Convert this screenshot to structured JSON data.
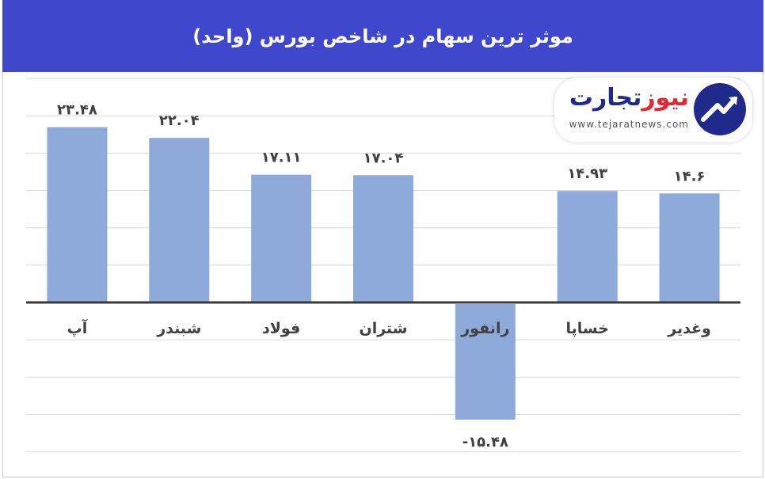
{
  "header": {
    "title": "موثر ترین سهام در شاخص بورس (واحد)"
  },
  "logo": {
    "name_part1": "تجارت",
    "name_part2": "نیوز",
    "url": "www.tejaratnews.com"
  },
  "colors": {
    "header_bg": "#3f48cc",
    "bar": "#8eaadb",
    "axis": "#3a3a3a",
    "grid": "#d9d9d9"
  },
  "chart_data": {
    "type": "bar",
    "categories": [
      "آپ",
      "شبندر",
      "فولاد",
      "شتران",
      "رانفور",
      "خساپا",
      "وغدیر"
    ],
    "values": [
      23.48,
      22.04,
      17.11,
      17.04,
      -15.48,
      14.93,
      14.6
    ],
    "value_labels": [
      "۲۳.۴۸",
      "۲۲.۰۴",
      "۱۷.۱۱",
      "۱۷.۰۴",
      "-۱۵.۴۸",
      "۱۴.۹۳",
      "۱۴.۶"
    ],
    "title": "موثر ترین سهام در شاخص بورس (واحد)",
    "xlabel": "",
    "ylabel": "",
    "ylim": [
      -20,
      30
    ],
    "grid": true,
    "legend": "none"
  }
}
